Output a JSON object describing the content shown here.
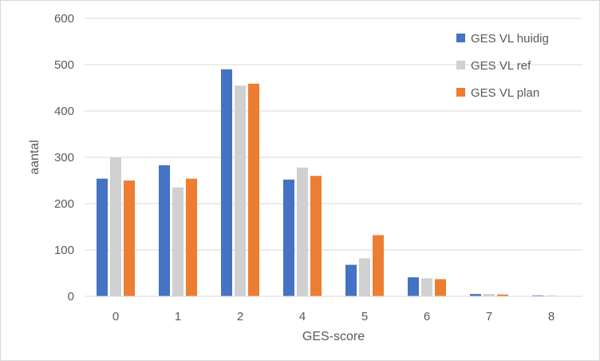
{
  "chart_data": {
    "type": "bar",
    "categories": [
      "0",
      "1",
      "2",
      "4",
      "5",
      "6",
      "7",
      "8"
    ],
    "series": [
      {
        "name": "GES VL huidig",
        "color": "#4472C4",
        "values": [
          254,
          283,
          490,
          252,
          68,
          41,
          5,
          2
        ]
      },
      {
        "name": "GES VL ref",
        "color": "#D0D0D0",
        "values": [
          300,
          235,
          455,
          278,
          82,
          39,
          5,
          2
        ]
      },
      {
        "name": "GES VL plan",
        "color": "#ED7D31",
        "values": [
          250,
          254,
          459,
          260,
          132,
          37,
          4,
          0
        ]
      }
    ],
    "title": "",
    "xlabel": "GES-score",
    "ylabel": "aantal",
    "ylim": [
      0,
      600
    ],
    "yticks": [
      "0",
      "100",
      "200",
      "300",
      "400",
      "500",
      "600"
    ],
    "grid": true,
    "legend_position": "top-right"
  }
}
